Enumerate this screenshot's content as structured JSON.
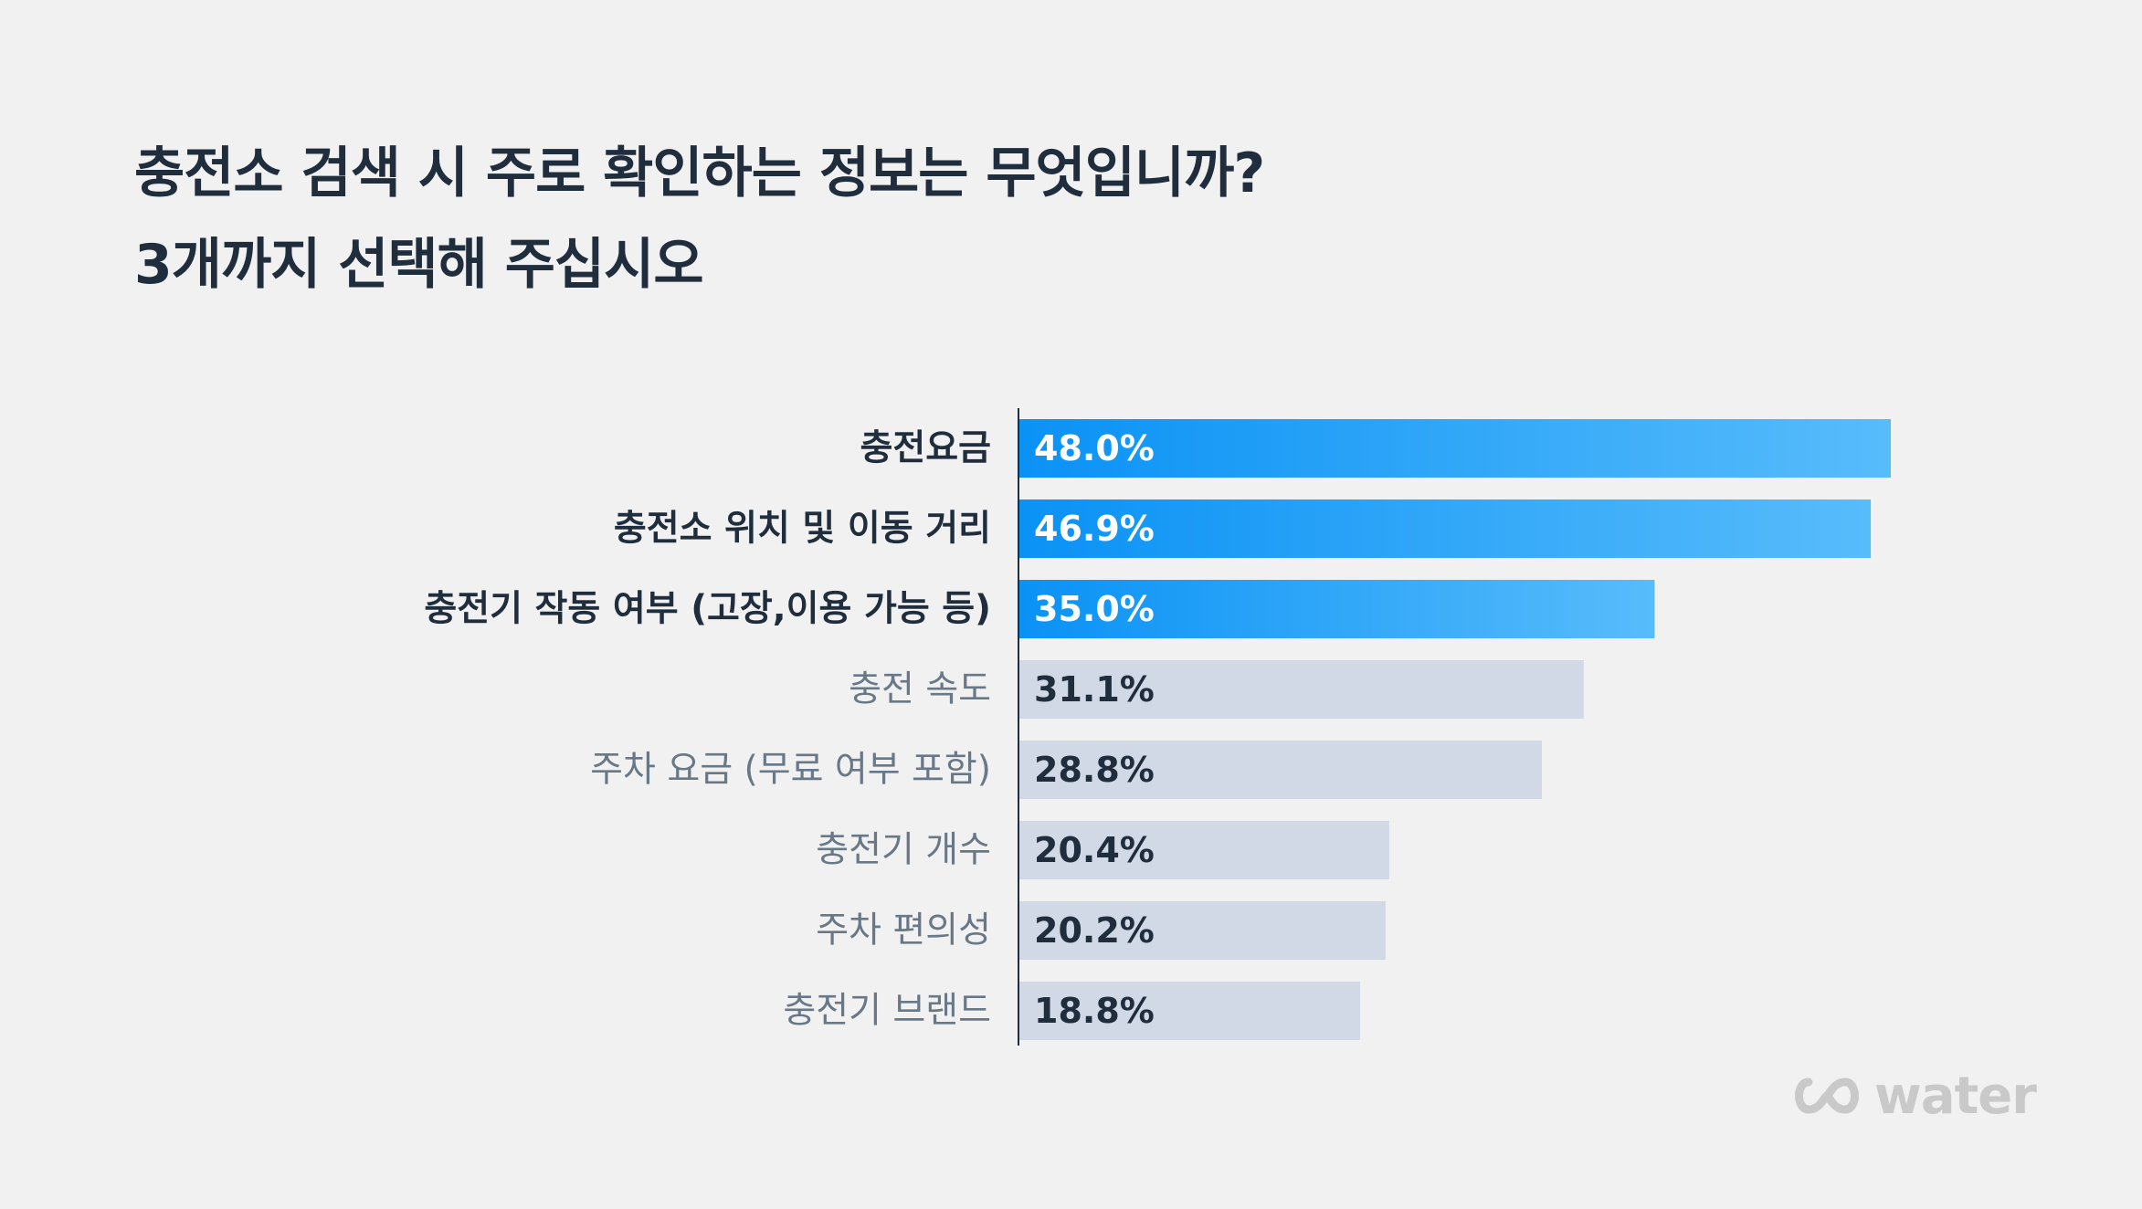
{
  "title": {
    "line1": "충전소 검색 시 주로 확인하는 정보는 무엇입니까?",
    "line2": "3개까지 선택해 주십시오"
  },
  "chart_data": {
    "type": "bar",
    "orientation": "horizontal",
    "categories": [
      "충전요금",
      "충전소 위치 및 이동 거리",
      "충전기 작동 여부 (고장,이용 가능 등)",
      "충전 속도",
      "주차 요금 (무료 여부 포함)",
      "충전기 개수",
      "주차 편의성",
      "충전기 브랜드"
    ],
    "values": [
      48.0,
      46.9,
      35.0,
      31.1,
      28.8,
      20.4,
      20.2,
      18.8
    ],
    "value_labels": [
      "48.0%",
      "46.9%",
      "35.0%",
      "31.1%",
      "28.8%",
      "20.4%",
      "20.2%",
      "18.8%"
    ],
    "highlighted_top": 3,
    "xlim": [
      0,
      50
    ],
    "grid": false,
    "colors": {
      "highlight_start": "#0a92f5",
      "highlight_end": "#58bcfb",
      "normal_bar": "#d1d8e6",
      "highlight_label_text": "#ffffff",
      "normal_label_text": "#1f2d3d",
      "highlight_category_text": "#1f2d3d",
      "normal_category_text": "#687887",
      "axis_line": "#1f2d3d"
    }
  },
  "logo": {
    "text": "water",
    "icon": "infinity-icon",
    "color": "#c9c9c9"
  }
}
